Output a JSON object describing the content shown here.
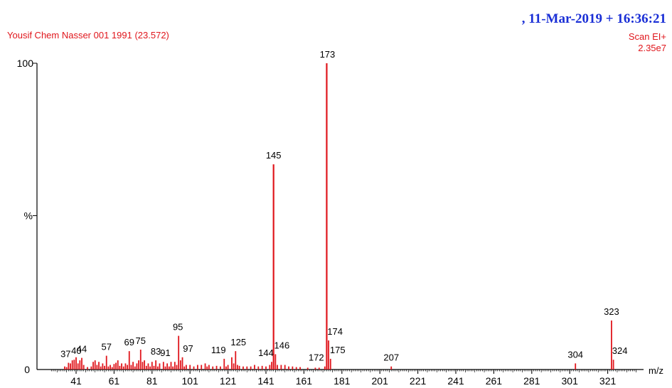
{
  "header": {
    "date_stamp": ", 11-Mar-2019 + 16:36:21",
    "sample_title": "Yousif Chem Nasser 001 1991 (23.572)",
    "scan_mode": "Scan EI+",
    "intensity": "2.35e7"
  },
  "colors": {
    "spectrum": "#e0161c",
    "date_stamp": "#1a2fd6",
    "axis": "#000000"
  },
  "chart_data": {
    "type": "bar",
    "title": "Yousif Chem Nasser 001 1991 (23.572)",
    "xlabel": "m/z",
    "ylabel": "%",
    "xlim": [
      28,
      336
    ],
    "ylim": [
      0,
      100
    ],
    "y_ticks": [
      0,
      100
    ],
    "y_mid_label": "%",
    "x_ticks": [
      41,
      61,
      81,
      101,
      121,
      141,
      161,
      181,
      201,
      221,
      241,
      261,
      281,
      301,
      321
    ],
    "peaks": [
      {
        "mz": 35,
        "rel": 1.0
      },
      {
        "mz": 36,
        "rel": 0.8
      },
      {
        "mz": 37,
        "rel": 2.2
      },
      {
        "mz": 38,
        "rel": 2.0
      },
      {
        "mz": 39,
        "rel": 3.0
      },
      {
        "mz": 40,
        "rel": 3.2
      },
      {
        "mz": 41,
        "rel": 4.0
      },
      {
        "mz": 42,
        "rel": 2.0
      },
      {
        "mz": 43,
        "rel": 3.0
      },
      {
        "mz": 44,
        "rel": 3.8
      },
      {
        "mz": 45,
        "rel": 1.5
      },
      {
        "mz": 47,
        "rel": 0.8
      },
      {
        "mz": 49,
        "rel": 1.0
      },
      {
        "mz": 50,
        "rel": 2.5
      },
      {
        "mz": 51,
        "rel": 3.0
      },
      {
        "mz": 52,
        "rel": 1.5
      },
      {
        "mz": 53,
        "rel": 2.5
      },
      {
        "mz": 54,
        "rel": 1.0
      },
      {
        "mz": 55,
        "rel": 2.0
      },
      {
        "mz": 56,
        "rel": 1.2
      },
      {
        "mz": 57,
        "rel": 4.5
      },
      {
        "mz": 58,
        "rel": 1.0
      },
      {
        "mz": 59,
        "rel": 1.5
      },
      {
        "mz": 60,
        "rel": 0.8
      },
      {
        "mz": 61,
        "rel": 1.8
      },
      {
        "mz": 62,
        "rel": 2.2
      },
      {
        "mz": 63,
        "rel": 3.0
      },
      {
        "mz": 64,
        "rel": 1.2
      },
      {
        "mz": 65,
        "rel": 2.0
      },
      {
        "mz": 66,
        "rel": 1.0
      },
      {
        "mz": 67,
        "rel": 2.0
      },
      {
        "mz": 68,
        "rel": 1.5
      },
      {
        "mz": 69,
        "rel": 6.0
      },
      {
        "mz": 70,
        "rel": 1.5
      },
      {
        "mz": 71,
        "rel": 2.5
      },
      {
        "mz": 72,
        "rel": 1.0
      },
      {
        "mz": 73,
        "rel": 2.0
      },
      {
        "mz": 74,
        "rel": 3.0
      },
      {
        "mz": 75,
        "rel": 6.5
      },
      {
        "mz": 76,
        "rel": 2.5
      },
      {
        "mz": 77,
        "rel": 3.0
      },
      {
        "mz": 78,
        "rel": 1.2
      },
      {
        "mz": 79,
        "rel": 2.0
      },
      {
        "mz": 80,
        "rel": 1.0
      },
      {
        "mz": 81,
        "rel": 2.5
      },
      {
        "mz": 82,
        "rel": 1.2
      },
      {
        "mz": 83,
        "rel": 3.0
      },
      {
        "mz": 84,
        "rel": 1.0
      },
      {
        "mz": 85,
        "rel": 2.0
      },
      {
        "mz": 87,
        "rel": 2.5
      },
      {
        "mz": 88,
        "rel": 1.0
      },
      {
        "mz": 89,
        "rel": 2.0
      },
      {
        "mz": 90,
        "rel": 1.0
      },
      {
        "mz": 91,
        "rel": 2.5
      },
      {
        "mz": 92,
        "rel": 1.0
      },
      {
        "mz": 93,
        "rel": 2.5
      },
      {
        "mz": 94,
        "rel": 1.5
      },
      {
        "mz": 95,
        "rel": 11.0
      },
      {
        "mz": 96,
        "rel": 3.0
      },
      {
        "mz": 97,
        "rel": 4.0
      },
      {
        "mz": 98,
        "rel": 1.0
      },
      {
        "mz": 99,
        "rel": 1.5
      },
      {
        "mz": 101,
        "rel": 1.5
      },
      {
        "mz": 103,
        "rel": 1.0
      },
      {
        "mz": 105,
        "rel": 1.5
      },
      {
        "mz": 107,
        "rel": 1.5
      },
      {
        "mz": 109,
        "rel": 2.0
      },
      {
        "mz": 110,
        "rel": 1.0
      },
      {
        "mz": 111,
        "rel": 1.5
      },
      {
        "mz": 113,
        "rel": 1.0
      },
      {
        "mz": 115,
        "rel": 1.2
      },
      {
        "mz": 117,
        "rel": 1.0
      },
      {
        "mz": 119,
        "rel": 3.5
      },
      {
        "mz": 120,
        "rel": 1.0
      },
      {
        "mz": 121,
        "rel": 1.5
      },
      {
        "mz": 123,
        "rel": 4.0
      },
      {
        "mz": 124,
        "rel": 2.0
      },
      {
        "mz": 125,
        "rel": 6.0
      },
      {
        "mz": 126,
        "rel": 1.5
      },
      {
        "mz": 127,
        "rel": 1.2
      },
      {
        "mz": 129,
        "rel": 1.0
      },
      {
        "mz": 131,
        "rel": 1.0
      },
      {
        "mz": 133,
        "rel": 1.0
      },
      {
        "mz": 135,
        "rel": 1.5
      },
      {
        "mz": 137,
        "rel": 1.0
      },
      {
        "mz": 139,
        "rel": 1.2
      },
      {
        "mz": 141,
        "rel": 1.0
      },
      {
        "mz": 143,
        "rel": 1.5
      },
      {
        "mz": 144,
        "rel": 2.5
      },
      {
        "mz": 145,
        "rel": 67.0
      },
      {
        "mz": 146,
        "rel": 5.0
      },
      {
        "mz": 147,
        "rel": 1.5
      },
      {
        "mz": 149,
        "rel": 1.5
      },
      {
        "mz": 151,
        "rel": 1.5
      },
      {
        "mz": 153,
        "rel": 1.0
      },
      {
        "mz": 155,
        "rel": 1.0
      },
      {
        "mz": 157,
        "rel": 0.8
      },
      {
        "mz": 159,
        "rel": 0.8
      },
      {
        "mz": 163,
        "rel": 0.6
      },
      {
        "mz": 167,
        "rel": 0.6
      },
      {
        "mz": 169,
        "rel": 0.6
      },
      {
        "mz": 172,
        "rel": 1.0
      },
      {
        "mz": 173,
        "rel": 100.0
      },
      {
        "mz": 174,
        "rel": 9.5
      },
      {
        "mz": 175,
        "rel": 3.5
      },
      {
        "mz": 207,
        "rel": 1.0
      },
      {
        "mz": 304,
        "rel": 2.0
      },
      {
        "mz": 323,
        "rel": 16.0
      },
      {
        "mz": 324,
        "rel": 3.2
      }
    ],
    "peak_labels": [
      {
        "mz": 37,
        "text": "37",
        "rel": 2.2
      },
      {
        "mz": 40,
        "text": "40",
        "rel": 3.2
      },
      {
        "mz": 44,
        "text": "44",
        "rel": 3.8
      },
      {
        "mz": 57,
        "text": "57",
        "rel": 4.5
      },
      {
        "mz": 69,
        "text": "69",
        "rel": 6.0
      },
      {
        "mz": 75,
        "text": "75",
        "rel": 6.5
      },
      {
        "mz": 83,
        "text": "83",
        "rel": 3.0
      },
      {
        "mz": 91,
        "text": "91",
        "rel": 2.5
      },
      {
        "mz": 95,
        "text": "95",
        "rel": 11.0
      },
      {
        "mz": 97,
        "text": "97",
        "rel": 4.0
      },
      {
        "mz": 119,
        "text": "119",
        "rel": 3.5
      },
      {
        "mz": 125,
        "text": "125",
        "rel": 6.0
      },
      {
        "mz": 144,
        "text": "144",
        "rel": 2.5
      },
      {
        "mz": 145,
        "text": "145",
        "rel": 67.0
      },
      {
        "mz": 146,
        "text": "146",
        "rel": 5.0
      },
      {
        "mz": 172,
        "text": "172",
        "rel": 1.0
      },
      {
        "mz": 173,
        "text": "173",
        "rel": 100.0
      },
      {
        "mz": 174,
        "text": "174",
        "rel": 9.5
      },
      {
        "mz": 175,
        "text": "175",
        "rel": 3.5
      },
      {
        "mz": 207,
        "text": "207",
        "rel": 1.0
      },
      {
        "mz": 304,
        "text": "304",
        "rel": 2.0
      },
      {
        "mz": 323,
        "text": "323",
        "rel": 16.0
      },
      {
        "mz": 324,
        "text": "324",
        "rel": 3.2
      }
    ]
  }
}
